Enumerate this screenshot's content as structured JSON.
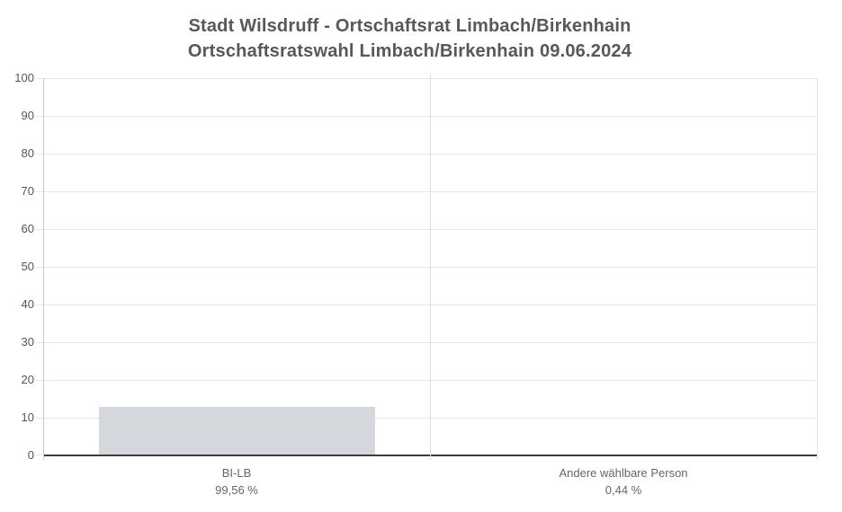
{
  "title": {
    "line1": "Stadt Wilsdruff - Ortschaftsrat Limbach/Birkenhain",
    "line2": "Ortschaftsratswahl Limbach/Birkenhain 09.06.2024"
  },
  "colors": {
    "background": "#ffffff",
    "title_text": "#58585a",
    "ytick_text": "#555555",
    "category_text": "#666666",
    "bar_fill": "#d4d7db",
    "gridline": "#e6e6e6",
    "yaxis_line": "#c9c9c9",
    "separator_line": "#dddddd",
    "right_border_line": "#e3e3e3",
    "zero_line": "#3c3c3c"
  },
  "chart_data": {
    "type": "bar",
    "title": "Stadt Wilsdruff - Ortschaftsrat Limbach/Birkenhain",
    "subtitle": "Ortschaftsratswahl Limbach/Birkenhain 09.06.2024",
    "categories": [
      "BI-LB",
      "Andere wählbare Person"
    ],
    "category_value_labels": [
      "99,56 %",
      "0,44 %"
    ],
    "values_percent": [
      99.56,
      0.44
    ],
    "bar_displayed_heights_axis_units": [
      12.6,
      0
    ],
    "ylim": [
      0,
      100
    ],
    "yticks": [
      0,
      10,
      20,
      30,
      40,
      50,
      60,
      70,
      80,
      90,
      100
    ],
    "xlabel": "",
    "ylabel": "",
    "grid": "horizontal",
    "legend": "none"
  }
}
